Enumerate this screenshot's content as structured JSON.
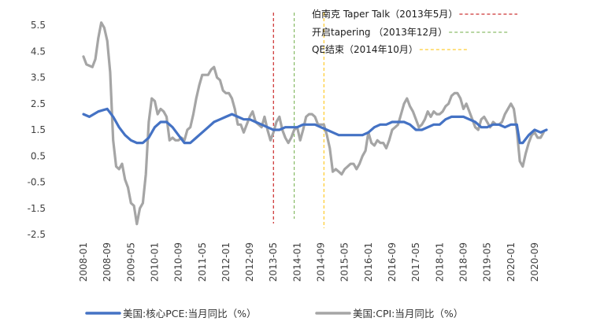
{
  "chart_data": {
    "type": "line",
    "title": "",
    "xlabel": "",
    "ylabel": "",
    "x_range": [
      "2008-01",
      "2021-01"
    ],
    "ylim": [
      -2.5,
      5.5
    ],
    "yticks": [
      -2.5,
      -1.5,
      -0.5,
      0.5,
      1.5,
      2.5,
      3.5,
      4.5,
      5.5
    ],
    "xticks": [
      "2008-01",
      "2008-09",
      "2009-05",
      "2010-01",
      "2010-09",
      "2011-05",
      "2012-01",
      "2012-09",
      "2013-05",
      "2014-01",
      "2014-09",
      "2015-05",
      "2016-01",
      "2016-09",
      "2017-05",
      "2018-01",
      "2018-09",
      "2019-05",
      "2020-01",
      "2020-09"
    ],
    "grid": false,
    "legend": "bottom",
    "series": [
      {
        "name": "美国:核心PCE:当月同比（%）",
        "color": "#4472C4",
        "points": [
          [
            "2008-01",
            2.1
          ],
          [
            "2008-03",
            2.0
          ],
          [
            "2008-06",
            2.2
          ],
          [
            "2008-09",
            2.3
          ],
          [
            "2008-11",
            2.0
          ],
          [
            "2009-01",
            1.6
          ],
          [
            "2009-03",
            1.3
          ],
          [
            "2009-05",
            1.1
          ],
          [
            "2009-07",
            1.0
          ],
          [
            "2009-09",
            1.0
          ],
          [
            "2009-11",
            1.2
          ],
          [
            "2010-01",
            1.6
          ],
          [
            "2010-03",
            1.8
          ],
          [
            "2010-05",
            1.8
          ],
          [
            "2010-07",
            1.6
          ],
          [
            "2010-09",
            1.3
          ],
          [
            "2010-11",
            1.0
          ],
          [
            "2011-01",
            1.0
          ],
          [
            "2011-03",
            1.2
          ],
          [
            "2011-05",
            1.4
          ],
          [
            "2011-07",
            1.6
          ],
          [
            "2011-09",
            1.8
          ],
          [
            "2011-11",
            1.9
          ],
          [
            "2012-01",
            2.0
          ],
          [
            "2012-03",
            2.1
          ],
          [
            "2012-05",
            2.0
          ],
          [
            "2012-07",
            1.9
          ],
          [
            "2012-09",
            1.9
          ],
          [
            "2012-11",
            1.8
          ],
          [
            "2013-01",
            1.7
          ],
          [
            "2013-03",
            1.6
          ],
          [
            "2013-05",
            1.5
          ],
          [
            "2013-07",
            1.5
          ],
          [
            "2013-09",
            1.6
          ],
          [
            "2013-11",
            1.6
          ],
          [
            "2014-01",
            1.6
          ],
          [
            "2014-03",
            1.7
          ],
          [
            "2014-05",
            1.7
          ],
          [
            "2014-07",
            1.7
          ],
          [
            "2014-09",
            1.6
          ],
          [
            "2014-11",
            1.5
          ],
          [
            "2015-01",
            1.4
          ],
          [
            "2015-03",
            1.3
          ],
          [
            "2015-05",
            1.3
          ],
          [
            "2015-07",
            1.3
          ],
          [
            "2015-09",
            1.3
          ],
          [
            "2015-11",
            1.3
          ],
          [
            "2016-01",
            1.4
          ],
          [
            "2016-03",
            1.6
          ],
          [
            "2016-05",
            1.7
          ],
          [
            "2016-07",
            1.7
          ],
          [
            "2016-09",
            1.8
          ],
          [
            "2016-11",
            1.8
          ],
          [
            "2017-01",
            1.8
          ],
          [
            "2017-03",
            1.7
          ],
          [
            "2017-05",
            1.5
          ],
          [
            "2017-07",
            1.5
          ],
          [
            "2017-09",
            1.6
          ],
          [
            "2017-11",
            1.7
          ],
          [
            "2018-01",
            1.7
          ],
          [
            "2018-03",
            1.9
          ],
          [
            "2018-05",
            2.0
          ],
          [
            "2018-07",
            2.0
          ],
          [
            "2018-09",
            2.0
          ],
          [
            "2018-11",
            1.9
          ],
          [
            "2019-01",
            1.8
          ],
          [
            "2019-03",
            1.6
          ],
          [
            "2019-05",
            1.6
          ],
          [
            "2019-07",
            1.7
          ],
          [
            "2019-09",
            1.7
          ],
          [
            "2019-11",
            1.6
          ],
          [
            "2020-01",
            1.7
          ],
          [
            "2020-03",
            1.7
          ],
          [
            "2020-04",
            1.0
          ],
          [
            "2020-05",
            1.0
          ],
          [
            "2020-07",
            1.3
          ],
          [
            "2020-09",
            1.5
          ],
          [
            "2020-11",
            1.4
          ],
          [
            "2021-01",
            1.5
          ]
        ]
      },
      {
        "name": "美国:CPI:当月同比（%）",
        "color": "#A5A5A5",
        "points": [
          [
            "2008-01",
            4.3
          ],
          [
            "2008-02",
            4.0
          ],
          [
            "2008-04",
            3.9
          ],
          [
            "2008-05",
            4.2
          ],
          [
            "2008-06",
            5.0
          ],
          [
            "2008-07",
            5.6
          ],
          [
            "2008-08",
            5.4
          ],
          [
            "2008-09",
            4.9
          ],
          [
            "2008-10",
            3.7
          ],
          [
            "2008-11",
            1.1
          ],
          [
            "2008-12",
            0.1
          ],
          [
            "2009-01",
            0.0
          ],
          [
            "2009-02",
            0.2
          ],
          [
            "2009-03",
            -0.4
          ],
          [
            "2009-04",
            -0.7
          ],
          [
            "2009-05",
            -1.3
          ],
          [
            "2009-06",
            -1.4
          ],
          [
            "2009-07",
            -2.1
          ],
          [
            "2009-08",
            -1.5
          ],
          [
            "2009-09",
            -1.3
          ],
          [
            "2009-10",
            -0.2
          ],
          [
            "2009-11",
            1.8
          ],
          [
            "2009-12",
            2.7
          ],
          [
            "2010-01",
            2.6
          ],
          [
            "2010-02",
            2.1
          ],
          [
            "2010-03",
            2.3
          ],
          [
            "2010-04",
            2.2
          ],
          [
            "2010-05",
            2.0
          ],
          [
            "2010-06",
            1.1
          ],
          [
            "2010-07",
            1.2
          ],
          [
            "2010-08",
            1.1
          ],
          [
            "2010-09",
            1.1
          ],
          [
            "2010-10",
            1.2
          ],
          [
            "2010-11",
            1.1
          ],
          [
            "2010-12",
            1.5
          ],
          [
            "2011-01",
            1.6
          ],
          [
            "2011-02",
            2.1
          ],
          [
            "2011-03",
            2.7
          ],
          [
            "2011-04",
            3.2
          ],
          [
            "2011-05",
            3.6
          ],
          [
            "2011-06",
            3.6
          ],
          [
            "2011-07",
            3.6
          ],
          [
            "2011-08",
            3.8
          ],
          [
            "2011-09",
            3.9
          ],
          [
            "2011-10",
            3.5
          ],
          [
            "2011-11",
            3.4
          ],
          [
            "2011-12",
            3.0
          ],
          [
            "2012-01",
            2.9
          ],
          [
            "2012-02",
            2.9
          ],
          [
            "2012-03",
            2.7
          ],
          [
            "2012-04",
            2.3
          ],
          [
            "2012-05",
            1.7
          ],
          [
            "2012-06",
            1.7
          ],
          [
            "2012-07",
            1.4
          ],
          [
            "2012-08",
            1.7
          ],
          [
            "2012-09",
            2.0
          ],
          [
            "2012-10",
            2.2
          ],
          [
            "2012-11",
            1.8
          ],
          [
            "2012-12",
            1.7
          ],
          [
            "2013-01",
            1.6
          ],
          [
            "2013-02",
            2.0
          ],
          [
            "2013-03",
            1.5
          ],
          [
            "2013-04",
            1.1
          ],
          [
            "2013-05",
            1.4
          ],
          [
            "2013-06",
            1.8
          ],
          [
            "2013-07",
            2.0
          ],
          [
            "2013-08",
            1.5
          ],
          [
            "2013-09",
            1.2
          ],
          [
            "2013-10",
            1.0
          ],
          [
            "2013-11",
            1.2
          ],
          [
            "2013-12",
            1.5
          ],
          [
            "2014-01",
            1.6
          ],
          [
            "2014-02",
            1.1
          ],
          [
            "2014-03",
            1.5
          ],
          [
            "2014-04",
            2.0
          ],
          [
            "2014-05",
            2.1
          ],
          [
            "2014-06",
            2.1
          ],
          [
            "2014-07",
            2.0
          ],
          [
            "2014-08",
            1.7
          ],
          [
            "2014-09",
            1.7
          ],
          [
            "2014-10",
            1.7
          ],
          [
            "2014-11",
            1.3
          ],
          [
            "2014-12",
            0.8
          ],
          [
            "2015-01",
            -0.1
          ],
          [
            "2015-02",
            0.0
          ],
          [
            "2015-03",
            -0.1
          ],
          [
            "2015-04",
            -0.2
          ],
          [
            "2015-05",
            0.0
          ],
          [
            "2015-06",
            0.1
          ],
          [
            "2015-07",
            0.2
          ],
          [
            "2015-08",
            0.2
          ],
          [
            "2015-09",
            0.0
          ],
          [
            "2015-10",
            0.2
          ],
          [
            "2015-11",
            0.5
          ],
          [
            "2015-12",
            0.7
          ],
          [
            "2016-01",
            1.4
          ],
          [
            "2016-02",
            1.0
          ],
          [
            "2016-03",
            0.9
          ],
          [
            "2016-04",
            1.1
          ],
          [
            "2016-05",
            1.0
          ],
          [
            "2016-06",
            1.0
          ],
          [
            "2016-07",
            0.8
          ],
          [
            "2016-08",
            1.1
          ],
          [
            "2016-09",
            1.5
          ],
          [
            "2016-10",
            1.6
          ],
          [
            "2016-11",
            1.7
          ],
          [
            "2016-12",
            2.1
          ],
          [
            "2017-01",
            2.5
          ],
          [
            "2017-02",
            2.7
          ],
          [
            "2017-03",
            2.4
          ],
          [
            "2017-04",
            2.2
          ],
          [
            "2017-05",
            1.9
          ],
          [
            "2017-06",
            1.6
          ],
          [
            "2017-07",
            1.7
          ],
          [
            "2017-08",
            1.9
          ],
          [
            "2017-09",
            2.2
          ],
          [
            "2017-10",
            2.0
          ],
          [
            "2017-11",
            2.2
          ],
          [
            "2017-12",
            2.1
          ],
          [
            "2018-01",
            2.1
          ],
          [
            "2018-02",
            2.2
          ],
          [
            "2018-03",
            2.4
          ],
          [
            "2018-04",
            2.5
          ],
          [
            "2018-05",
            2.8
          ],
          [
            "2018-06",
            2.9
          ],
          [
            "2018-07",
            2.9
          ],
          [
            "2018-08",
            2.7
          ],
          [
            "2018-09",
            2.3
          ],
          [
            "2018-10",
            2.5
          ],
          [
            "2018-11",
            2.2
          ],
          [
            "2018-12",
            1.9
          ],
          [
            "2019-01",
            1.6
          ],
          [
            "2019-02",
            1.5
          ],
          [
            "2019-03",
            1.9
          ],
          [
            "2019-04",
            2.0
          ],
          [
            "2019-05",
            1.8
          ],
          [
            "2019-06",
            1.6
          ],
          [
            "2019-07",
            1.8
          ],
          [
            "2019-08",
            1.7
          ],
          [
            "2019-09",
            1.7
          ],
          [
            "2019-10",
            1.8
          ],
          [
            "2019-11",
            2.1
          ],
          [
            "2019-12",
            2.3
          ],
          [
            "2020-01",
            2.5
          ],
          [
            "2020-02",
            2.3
          ],
          [
            "2020-03",
            1.5
          ],
          [
            "2020-04",
            0.3
          ],
          [
            "2020-05",
            0.1
          ],
          [
            "2020-06",
            0.6
          ],
          [
            "2020-07",
            1.0
          ],
          [
            "2020-08",
            1.3
          ],
          [
            "2020-09",
            1.4
          ],
          [
            "2020-10",
            1.2
          ],
          [
            "2020-11",
            1.2
          ],
          [
            "2020-12",
            1.4
          ]
        ]
      }
    ],
    "annotations": [
      {
        "label": "伯南克 Taper Talk（2013年5月）",
        "date": "2013-05",
        "color": "#C00000"
      },
      {
        "label": "开启tapering （2013年12月）",
        "date": "2013-12",
        "color": "#70AD47"
      },
      {
        "label": "QE结束（2014年10月）",
        "date": "2014-10",
        "color": "#FFC000"
      }
    ]
  }
}
